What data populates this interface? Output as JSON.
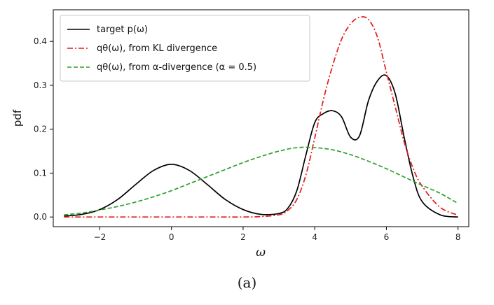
{
  "chart_data": {
    "type": "line",
    "xlabel": "ω",
    "ylabel": "pdf",
    "xlim": [
      -3.3,
      8.3
    ],
    "ylim": [
      -0.022,
      0.472
    ],
    "xticks": [
      "−2",
      "0",
      "2",
      "4",
      "6",
      "8"
    ],
    "xtick_values": [
      -2,
      0,
      2,
      4,
      6,
      8
    ],
    "yticks": [
      "0.0",
      "0.1",
      "0.2",
      "0.3",
      "0.4"
    ],
    "ytick_values": [
      0.0,
      0.1,
      0.2,
      0.3,
      0.4
    ],
    "grid": false,
    "legend_position": "top-left",
    "series": [
      {
        "name": "target p(ω)",
        "color": "#000000",
        "style": "solid",
        "x": [
          -3,
          -2.5,
          -2,
          -1.5,
          -1,
          -0.5,
          0,
          0.5,
          1,
          1.5,
          2,
          2.5,
          3,
          3.25,
          3.5,
          3.75,
          4,
          4.25,
          4.5,
          4.75,
          5,
          5.25,
          5.5,
          5.75,
          6,
          6.25,
          6.5,
          6.75,
          7,
          7.5,
          8
        ],
        "values": [
          0.002,
          0.006,
          0.017,
          0.04,
          0.074,
          0.106,
          0.12,
          0.106,
          0.074,
          0.04,
          0.017,
          0.006,
          0.008,
          0.02,
          0.06,
          0.14,
          0.215,
          0.236,
          0.242,
          0.228,
          0.182,
          0.185,
          0.265,
          0.31,
          0.322,
          0.28,
          0.18,
          0.09,
          0.035,
          0.005,
          0.0
        ]
      },
      {
        "name": "qθ(ω), from KL divergence",
        "color": "#e41a1c",
        "style": "dashdot",
        "x": [
          -3,
          -1,
          1,
          2,
          2.5,
          3,
          3.25,
          3.5,
          3.75,
          4,
          4.25,
          4.5,
          4.75,
          5,
          5.25,
          5.5,
          5.75,
          6,
          6.25,
          6.5,
          6.75,
          7,
          7.5,
          8
        ],
        "values": [
          0.0,
          0.0,
          0.0,
          0.0,
          0.001,
          0.005,
          0.015,
          0.04,
          0.095,
          0.18,
          0.27,
          0.345,
          0.405,
          0.44,
          0.455,
          0.45,
          0.41,
          0.33,
          0.25,
          0.17,
          0.11,
          0.07,
          0.022,
          0.004
        ]
      },
      {
        "name": "qθ(ω), from α-divergence (α = 0.5)",
        "color": "#2ca02c",
        "style": "dashed",
        "x": [
          -3,
          -2.5,
          -2,
          -1.5,
          -1,
          -0.5,
          0,
          0.5,
          1,
          1.5,
          2,
          2.5,
          3,
          3.5,
          4,
          4.5,
          5,
          5.5,
          6,
          6.5,
          7,
          7.5,
          8
        ],
        "values": [
          0.005,
          0.009,
          0.016,
          0.024,
          0.034,
          0.046,
          0.06,
          0.076,
          0.092,
          0.108,
          0.124,
          0.138,
          0.15,
          0.158,
          0.158,
          0.153,
          0.142,
          0.127,
          0.11,
          0.091,
          0.072,
          0.054,
          0.031
        ]
      }
    ],
    "legend_labels": [
      "target p(ω)",
      "qθ(ω), from KL divergence",
      "qθ(ω), from α-divergence (α = 0.5)"
    ],
    "caption": "(a)"
  }
}
